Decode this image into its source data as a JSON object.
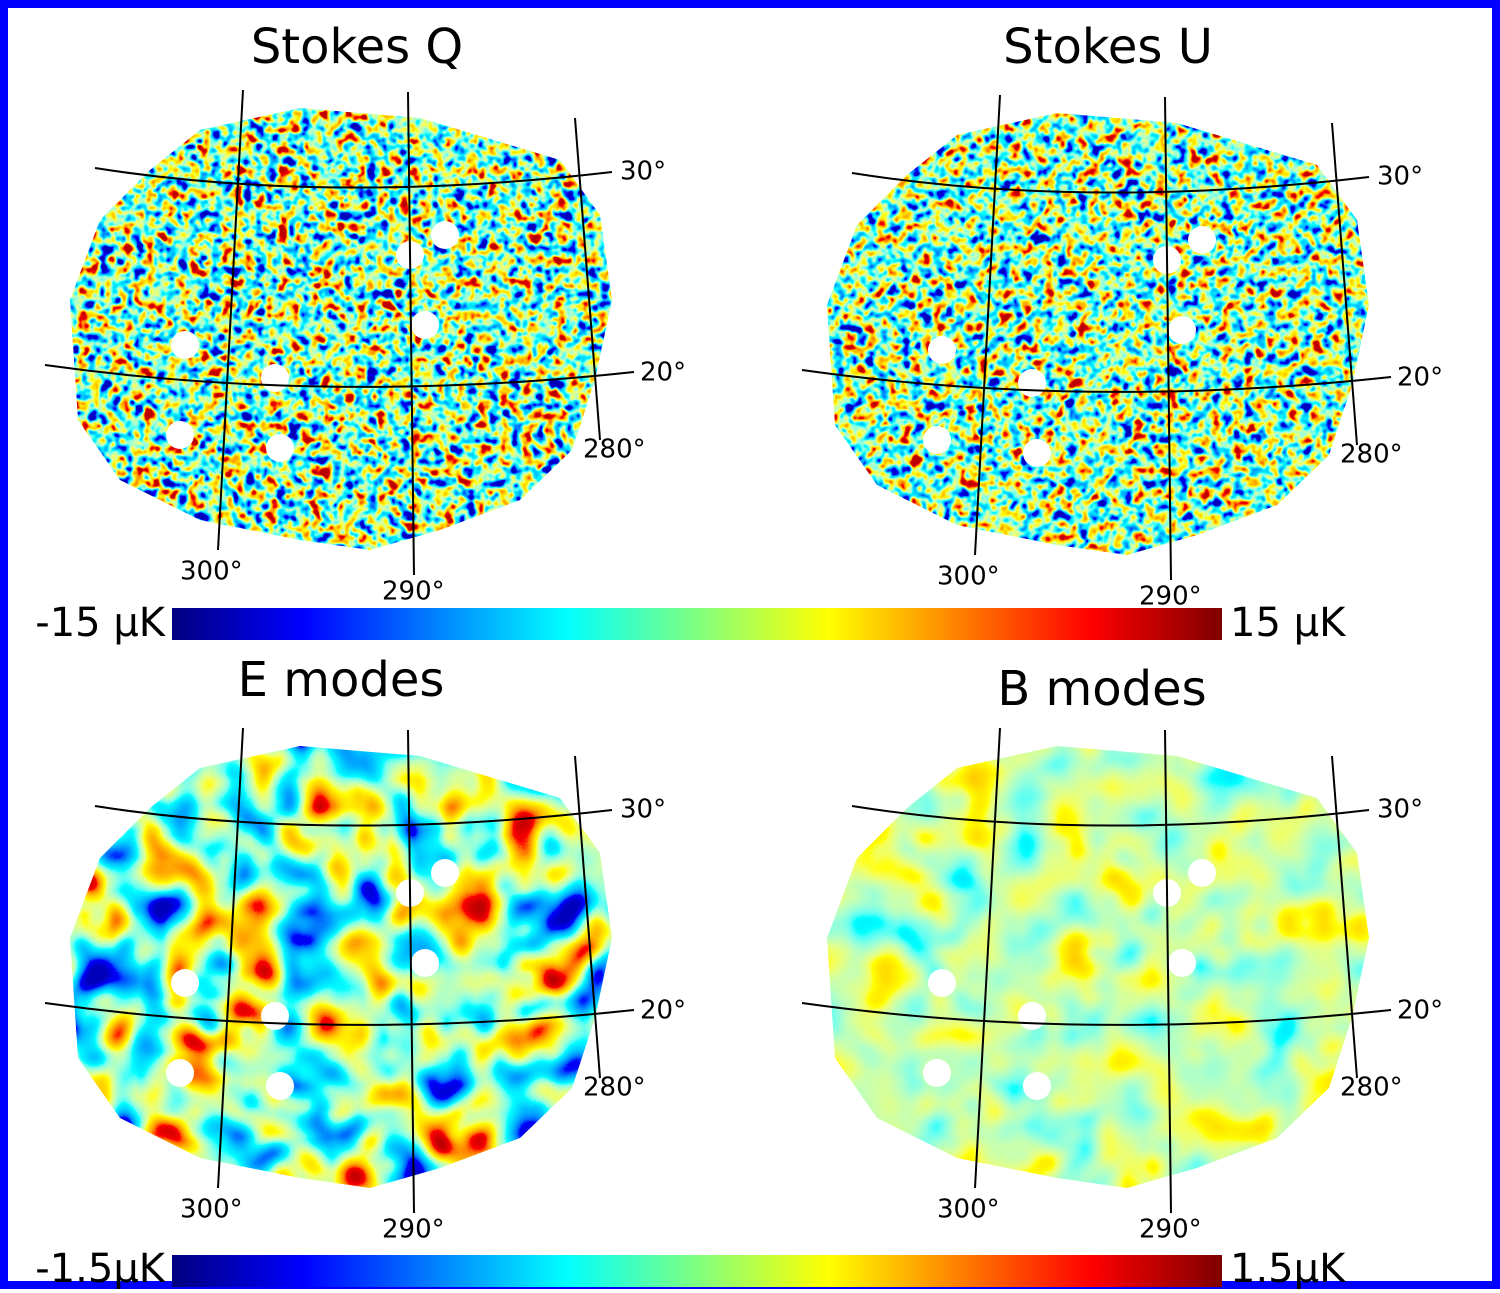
{
  "panels": [
    {
      "title": "Stokes  Q",
      "labels": [
        "30°",
        "20°",
        "280°",
        "300°",
        "290°"
      ]
    },
    {
      "title": "Stokes  U",
      "labels": [
        "30°",
        "20°",
        "280°",
        "300°",
        "290°"
      ]
    },
    {
      "title": "E modes",
      "labels": [
        "30°",
        "20°",
        "280°",
        "300°",
        "290°"
      ]
    },
    {
      "title": "B modes",
      "labels": [
        "30°",
        "20°",
        "280°",
        "300°",
        "290°"
      ]
    }
  ],
  "colorbars": [
    {
      "min_label": "-15 μK",
      "max_label": "15 μK"
    },
    {
      "min_label": "-1.5μK",
      "max_label": "1.5μK"
    }
  ]
}
